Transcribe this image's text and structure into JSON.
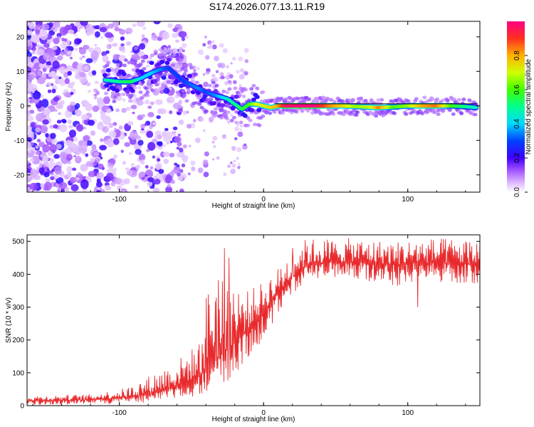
{
  "title": "S174.2026.077.13.11.R19",
  "colors": {
    "axis": "#000000",
    "snr_line": "#e8292c",
    "bg": "#ffffff"
  },
  "chart_data": [
    {
      "type": "heatmap",
      "title": "S174.2026.077.13.11.R19",
      "xlabel": "Height of straight line (km)",
      "ylabel": "Frequency (Hz)",
      "xlim": [
        -164,
        150
      ],
      "ylim": [
        -25,
        24.5
      ],
      "x_ticks": [
        -100,
        0,
        100
      ],
      "x_tick_labels": [
        "-100",
        "0",
        "100"
      ],
      "y_ticks": [
        -20,
        -10,
        0,
        10,
        20
      ],
      "y_tick_labels": [
        "-20",
        "-10",
        "0",
        "10",
        "20"
      ],
      "colorbar": {
        "label": "Normalized spectral amplitude",
        "range": [
          0,
          1
        ],
        "ticks": [
          0,
          0.2,
          0.4,
          0.6,
          0.8
        ],
        "tick_labels": [
          "0.0",
          "0.2",
          "0.4",
          "0.6",
          "0.8"
        ]
      },
      "ridge": [
        {
          "x": -110,
          "f": 7.5,
          "a": 0.45
        },
        {
          "x": -100,
          "f": 7.0,
          "a": 0.5
        },
        {
          "x": -92,
          "f": 7.0,
          "a": 0.55
        },
        {
          "x": -85,
          "f": 8.0,
          "a": 0.4
        },
        {
          "x": -78,
          "f": 9.5,
          "a": 0.4
        },
        {
          "x": -72,
          "f": 10.5,
          "a": 0.35
        },
        {
          "x": -66,
          "f": 11.0,
          "a": 0.3
        },
        {
          "x": -62,
          "f": 9.5,
          "a": 0.3
        },
        {
          "x": -55,
          "f": 7.0,
          "a": 0.3
        },
        {
          "x": -45,
          "f": 5.0,
          "a": 0.35
        },
        {
          "x": -40,
          "f": 4.0,
          "a": 0.3
        },
        {
          "x": -33,
          "f": 3.0,
          "a": 0.35
        },
        {
          "x": -25,
          "f": 2.0,
          "a": 0.45
        },
        {
          "x": -20,
          "f": 0.5,
          "a": 0.5
        },
        {
          "x": -15,
          "f": -1.0,
          "a": 0.55
        },
        {
          "x": -10,
          "f": 0.5,
          "a": 0.6
        },
        {
          "x": -5,
          "f": 0.5,
          "a": 0.7
        },
        {
          "x": 0,
          "f": 0.0,
          "a": 0.7
        },
        {
          "x": 5,
          "f": -0.5,
          "a": 0.75
        },
        {
          "x": 10,
          "f": 0.0,
          "a": 0.8
        },
        {
          "x": 15,
          "f": 0.0,
          "a": 0.95
        },
        {
          "x": 25,
          "f": 0.0,
          "a": 1.0
        },
        {
          "x": 35,
          "f": 0.0,
          "a": 1.0
        },
        {
          "x": 45,
          "f": 0.0,
          "a": 0.85
        },
        {
          "x": 55,
          "f": 0.0,
          "a": 0.75
        },
        {
          "x": 65,
          "f": -0.2,
          "a": 0.65
        },
        {
          "x": 75,
          "f": -0.4,
          "a": 0.7
        },
        {
          "x": 80,
          "f": -0.5,
          "a": 0.85
        },
        {
          "x": 90,
          "f": -0.3,
          "a": 0.6
        },
        {
          "x": 100,
          "f": 0.0,
          "a": 0.65
        },
        {
          "x": 110,
          "f": 0.0,
          "a": 0.8
        },
        {
          "x": 120,
          "f": 0.0,
          "a": 0.85
        },
        {
          "x": 130,
          "f": 0.0,
          "a": 0.6
        },
        {
          "x": 140,
          "f": -0.2,
          "a": 0.5
        },
        {
          "x": 148,
          "f": -0.5,
          "a": 0.45
        }
      ]
    },
    {
      "type": "line",
      "xlabel": "Height of straight line (km)",
      "ylabel": "SNR (10 * v/v)",
      "xlim": [
        -164,
        150
      ],
      "ylim": [
        0,
        520
      ],
      "x_ticks": [
        -100,
        0,
        100
      ],
      "x_tick_labels": [
        "-100",
        "0",
        "100"
      ],
      "y_ticks": [
        0,
        100,
        200,
        300,
        400,
        500
      ],
      "y_tick_labels": [
        "0",
        "100",
        "200",
        "300",
        "400",
        "500"
      ],
      "series": [
        {
          "name": "SNR",
          "envelope": [
            {
              "x": -164,
              "lo": 0,
              "mean": 15,
              "hi": 30
            },
            {
              "x": -120,
              "lo": 5,
              "mean": 18,
              "hi": 35
            },
            {
              "x": -95,
              "lo": 5,
              "mean": 25,
              "hi": 55
            },
            {
              "x": -80,
              "lo": 10,
              "mean": 35,
              "hi": 90
            },
            {
              "x": -60,
              "lo": 20,
              "mean": 60,
              "hi": 140
            },
            {
              "x": -45,
              "lo": 30,
              "mean": 90,
              "hi": 190
            },
            {
              "x": -35,
              "lo": 50,
              "mean": 130,
              "hi": 480
            },
            {
              "x": -28,
              "lo": 60,
              "mean": 160,
              "hi": 450
            },
            {
              "x": -20,
              "lo": 80,
              "mean": 190,
              "hi": 380
            },
            {
              "x": -10,
              "lo": 150,
              "mean": 240,
              "hi": 350
            },
            {
              "x": 0,
              "lo": 200,
              "mean": 290,
              "hi": 380
            },
            {
              "x": 10,
              "lo": 280,
              "mean": 340,
              "hi": 420
            },
            {
              "x": 20,
              "lo": 340,
              "mean": 390,
              "hi": 480
            },
            {
              "x": 30,
              "lo": 380,
              "mean": 430,
              "hi": 510
            },
            {
              "x": 60,
              "lo": 390,
              "mean": 440,
              "hi": 510
            },
            {
              "x": 90,
              "lo": 360,
              "mean": 430,
              "hi": 500
            },
            {
              "x": 110,
              "lo": 380,
              "mean": 435,
              "hi": 510
            },
            {
              "x": 150,
              "lo": 370,
              "mean": 430,
              "hi": 510
            }
          ],
          "features": [
            {
              "x": -27,
              "value": 480
            },
            {
              "x": -24,
              "value": 450
            },
            {
              "x": 20,
              "value": 480
            },
            {
              "x": 107,
              "value": 300
            },
            {
              "x": 93,
              "value": 365
            }
          ]
        }
      ]
    }
  ]
}
